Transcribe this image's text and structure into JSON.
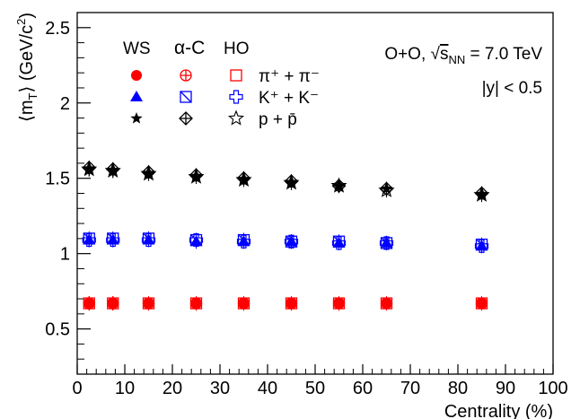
{
  "chart_data": {
    "type": "scatter",
    "xlabel": "Centrality (%)",
    "ylabel_main": "⟨m",
    "ylabel_sub": "T",
    "ylabel_rest": "⟩ (GeV/c",
    "ylabel_sup": "2",
    "ylabel_end": ")",
    "xlim": [
      0,
      100
    ],
    "ylim": [
      0.2,
      2.6
    ],
    "xticks": [
      0,
      10,
      20,
      30,
      40,
      50,
      60,
      70,
      80,
      90,
      100
    ],
    "yticks": [
      0.5,
      1,
      1.5,
      2,
      2.5
    ],
    "xtick_labels": [
      "0",
      "10",
      "20",
      "30",
      "40",
      "50",
      "60",
      "70",
      "80",
      "90",
      "100"
    ],
    "ytick_labels": [
      "0.5",
      "1",
      "1.5",
      "2",
      "2.5"
    ],
    "annotations": {
      "system_prefix": "O+O, ",
      "sqrt_sym": "√",
      "s_letter": "s",
      "s_sub": "NN",
      "energy": " = 7.0 TeV",
      "rapidity": "|y| < 0.5"
    },
    "legend": {
      "col_headers": [
        "WS",
        "α-C",
        "HO"
      ],
      "rows": [
        {
          "label": "π⁺ + π⁻"
        },
        {
          "label": "K⁺ + K⁻"
        },
        {
          "label": "p + p̄"
        }
      ]
    },
    "x": [
      2.5,
      7.5,
      15,
      25,
      35,
      45,
      55,
      65,
      85
    ],
    "series": [
      {
        "name": "WS π⁺ + π⁻",
        "model": "WS",
        "particle": "pion",
        "color": "#ff0000",
        "values": [
          0.67,
          0.67,
          0.67,
          0.67,
          0.67,
          0.67,
          0.67,
          0.67,
          0.67
        ]
      },
      {
        "name": "α-C π⁺ + π⁻",
        "model": "alphaC",
        "particle": "pion",
        "color": "#ff0000",
        "values": [
          0.67,
          0.67,
          0.67,
          0.67,
          0.67,
          0.67,
          0.67,
          0.67,
          0.67
        ]
      },
      {
        "name": "HO π⁺ + π⁻",
        "model": "HO",
        "particle": "pion",
        "color": "#ff0000",
        "values": [
          0.67,
          0.67,
          0.67,
          0.67,
          0.67,
          0.67,
          0.67,
          0.67,
          0.67
        ]
      },
      {
        "name": "WS K⁺ + K⁻",
        "model": "WS",
        "particle": "kaon",
        "color": "#0000ff",
        "values": [
          1.09,
          1.09,
          1.09,
          1.08,
          1.08,
          1.08,
          1.07,
          1.07,
          1.05
        ]
      },
      {
        "name": "α-C K⁺ + K⁻",
        "model": "alphaC",
        "particle": "kaon",
        "color": "#0000ff",
        "values": [
          1.1,
          1.1,
          1.1,
          1.09,
          1.09,
          1.08,
          1.08,
          1.07,
          1.06
        ]
      },
      {
        "name": "HO K⁺ + K⁻",
        "model": "HO",
        "particle": "kaon",
        "color": "#0000ff",
        "values": [
          1.09,
          1.09,
          1.09,
          1.09,
          1.08,
          1.08,
          1.07,
          1.07,
          1.05
        ]
      },
      {
        "name": "WS p + p̄",
        "model": "WS",
        "particle": "proton",
        "color": "#000000",
        "values": [
          1.56,
          1.55,
          1.53,
          1.51,
          1.49,
          1.47,
          1.45,
          1.43,
          1.39
        ]
      },
      {
        "name": "α-C p + p̄",
        "model": "alphaC",
        "particle": "proton",
        "color": "#000000",
        "values": [
          1.57,
          1.56,
          1.54,
          1.52,
          1.5,
          1.48,
          1.45,
          1.43,
          1.4
        ]
      },
      {
        "name": "HO p + p̄",
        "model": "HO",
        "particle": "proton",
        "color": "#000000",
        "values": [
          1.56,
          1.55,
          1.53,
          1.51,
          1.49,
          1.47,
          1.45,
          1.42,
          1.39
        ]
      }
    ],
    "grid": false
  }
}
